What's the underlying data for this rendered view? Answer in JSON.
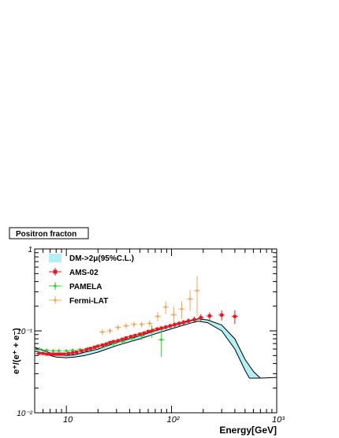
{
  "chart_data": {
    "type": "scatter",
    "title": "Positron fracton",
    "xlabel": "Energy[GeV]",
    "ylabel": "e⁺/(e⁺ + e⁻)",
    "x_scale": "log",
    "y_scale": "log",
    "xlim": [
      5,
      1000
    ],
    "ylim": [
      0.01,
      1
    ],
    "x_ticks": [
      {
        "value": 10,
        "label": "10"
      },
      {
        "value": 100,
        "label": "10²"
      },
      {
        "value": 1000,
        "label": "10³"
      }
    ],
    "y_ticks": [
      {
        "value": 0.01,
        "label": "10⁻²"
      },
      {
        "value": 0.1,
        "label": "10⁻¹"
      },
      {
        "value": 1,
        "label": "1"
      }
    ],
    "grid": false,
    "legend_position": "top-left",
    "band": {
      "name": "DM->2μ(95%C.L.)",
      "color": "#b3f0f5",
      "upper": [
        [
          5,
          0.063
        ],
        [
          6,
          0.058
        ],
        [
          7,
          0.054
        ],
        [
          8,
          0.051
        ],
        [
          10,
          0.05
        ],
        [
          12,
          0.051
        ],
        [
          15,
          0.055
        ],
        [
          20,
          0.06
        ],
        [
          30,
          0.072
        ],
        [
          50,
          0.087
        ],
        [
          70,
          0.1
        ],
        [
          100,
          0.115
        ],
        [
          150,
          0.133
        ],
        [
          180,
          0.14
        ],
        [
          220,
          0.136
        ],
        [
          300,
          0.118
        ],
        [
          400,
          0.08
        ],
        [
          500,
          0.045
        ],
        [
          600,
          0.032
        ],
        [
          700,
          0.0265
        ]
      ],
      "lower": [
        [
          5,
          0.057
        ],
        [
          6,
          0.053
        ],
        [
          7,
          0.05
        ],
        [
          8,
          0.048
        ],
        [
          10,
          0.047
        ],
        [
          12,
          0.048
        ],
        [
          15,
          0.05
        ],
        [
          20,
          0.055
        ],
        [
          30,
          0.066
        ],
        [
          50,
          0.08
        ],
        [
          70,
          0.092
        ],
        [
          100,
          0.106
        ],
        [
          150,
          0.124
        ],
        [
          180,
          0.131
        ],
        [
          220,
          0.126
        ],
        [
          300,
          0.1
        ],
        [
          400,
          0.06
        ],
        [
          500,
          0.033
        ],
        [
          550,
          0.0265
        ],
        [
          700,
          0.0265
        ]
      ],
      "extension": [
        [
          700,
          0.0265
        ],
        [
          850,
          0.0268
        ],
        [
          1000,
          0.027
        ]
      ]
    },
    "series": [
      {
        "name": "AMS-02",
        "color": "#e8141e",
        "marker": "square",
        "points": [
          [
            5.5,
            0.053
          ],
          [
            6.0,
            0.053
          ],
          [
            6.5,
            0.052
          ],
          [
            7.0,
            0.052
          ],
          [
            7.5,
            0.052
          ],
          [
            8.0,
            0.052
          ],
          [
            8.5,
            0.052
          ],
          [
            9.0,
            0.052
          ],
          [
            9.5,
            0.052
          ],
          [
            10.5,
            0.053
          ],
          [
            11.5,
            0.054
          ],
          [
            12.5,
            0.055
          ],
          [
            14,
            0.057
          ],
          [
            15.5,
            0.059
          ],
          [
            17,
            0.061
          ],
          [
            18.5,
            0.063
          ],
          [
            20,
            0.065
          ],
          [
            22,
            0.067
          ],
          [
            24,
            0.069
          ],
          [
            26,
            0.072
          ],
          [
            28,
            0.074
          ],
          [
            31,
            0.076
          ],
          [
            34,
            0.079
          ],
          [
            37,
            0.082
          ],
          [
            41,
            0.085
          ],
          [
            45,
            0.088
          ],
          [
            50,
            0.091
          ],
          [
            55,
            0.094
          ],
          [
            60,
            0.098
          ],
          [
            66,
            0.101
          ],
          [
            73,
            0.105
          ],
          [
            80,
            0.108
          ],
          [
            88,
            0.111
          ],
          [
            97,
            0.115
          ],
          [
            107,
            0.119
          ],
          [
            118,
            0.123
          ],
          [
            130,
            0.127
          ],
          [
            145,
            0.132
          ],
          [
            165,
            0.137
          ],
          [
            190,
            0.145
          ],
          [
            230,
            0.152
          ],
          [
            300,
            0.156
          ],
          [
            400,
            0.15
          ]
        ],
        "y_err": [
          0.002,
          0.002,
          0.002,
          0.002,
          0.002,
          0.002,
          0.002,
          0.002,
          0.002,
          0.002,
          0.002,
          0.002,
          0.002,
          0.002,
          0.002,
          0.002,
          0.003,
          0.003,
          0.003,
          0.003,
          0.003,
          0.003,
          0.003,
          0.004,
          0.004,
          0.004,
          0.004,
          0.005,
          0.005,
          0.005,
          0.006,
          0.006,
          0.007,
          0.007,
          0.008,
          0.009,
          0.009,
          0.01,
          0.012,
          0.014,
          0.016,
          0.022,
          0.028
        ]
      },
      {
        "name": "PAMELA",
        "color": "#33cc33",
        "marker": "cross",
        "points": [
          [
            5.5,
            0.06
          ],
          [
            6.5,
            0.058
          ],
          [
            7.5,
            0.057
          ],
          [
            8.5,
            0.057
          ],
          [
            10,
            0.057
          ],
          [
            11.5,
            0.058
          ],
          [
            13.5,
            0.059
          ],
          [
            16,
            0.061
          ],
          [
            19,
            0.063
          ],
          [
            23,
            0.066
          ],
          [
            28,
            0.07
          ],
          [
            34,
            0.074
          ],
          [
            42,
            0.081
          ],
          [
            52,
            0.087
          ],
          [
            65,
            0.1
          ],
          [
            80,
            0.078
          ]
        ],
        "y_err": [
          0.003,
          0.003,
          0.003,
          0.003,
          0.003,
          0.003,
          0.003,
          0.003,
          0.004,
          0.004,
          0.005,
          0.006,
          0.008,
          0.01,
          0.018,
          0.03
        ]
      },
      {
        "name": "Fermi-LAT",
        "color": "#f0a860",
        "marker": "cross",
        "points": [
          [
            22,
            0.097
          ],
          [
            26,
            0.1
          ],
          [
            31,
            0.11
          ],
          [
            37,
            0.115
          ],
          [
            44,
            0.12
          ],
          [
            52,
            0.12
          ],
          [
            62,
            0.123
          ],
          [
            74,
            0.15
          ],
          [
            88,
            0.195
          ],
          [
            105,
            0.157
          ],
          [
            125,
            0.185
          ],
          [
            150,
            0.245
          ],
          [
            175,
            0.31
          ]
        ],
        "y_err": [
          0.008,
          0.008,
          0.009,
          0.009,
          0.01,
          0.01,
          0.012,
          0.02,
          0.035,
          0.04,
          0.045,
          0.07,
          0.16
        ]
      }
    ]
  }
}
